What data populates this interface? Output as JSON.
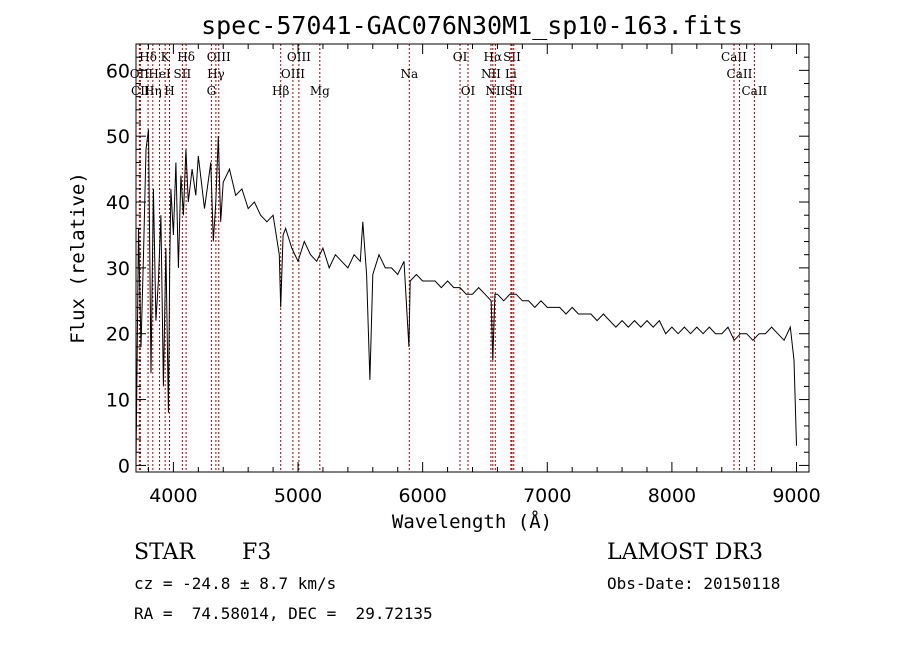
{
  "chart_data": {
    "type": "line",
    "title": "spec-57041-GAC076N30M1_sp10-163.fits",
    "xlabel": "Wavelength (Å)",
    "ylabel": "Flux (relative)",
    "xlim": [
      3700,
      9100
    ],
    "ylim": [
      -1,
      64
    ],
    "xticks": [
      4000,
      5000,
      6000,
      7000,
      8000,
      9000
    ],
    "yticks": [
      0,
      10,
      20,
      30,
      40,
      50,
      60
    ],
    "series": [
      {
        "name": "flux",
        "color": "#000000",
        "x": [
          3700,
          3720,
          3740,
          3760,
          3780,
          3800,
          3820,
          3840,
          3860,
          3880,
          3900,
          3920,
          3940,
          3960,
          3970,
          3980,
          4000,
          4020,
          4040,
          4060,
          4080,
          4100,
          4120,
          4150,
          4180,
          4200,
          4250,
          4300,
          4320,
          4340,
          4360,
          4380,
          4400,
          4450,
          4500,
          4550,
          4600,
          4650,
          4700,
          4750,
          4800,
          4850,
          4861,
          4880,
          4900,
          4950,
          5000,
          5050,
          5100,
          5150,
          5200,
          5250,
          5300,
          5350,
          5400,
          5450,
          5500,
          5520,
          5550,
          5577,
          5600,
          5650,
          5700,
          5750,
          5800,
          5850,
          5890,
          5900,
          5950,
          6000,
          6050,
          6100,
          6150,
          6200,
          6250,
          6300,
          6350,
          6400,
          6450,
          6500,
          6550,
          6563,
          6580,
          6600,
          6650,
          6700,
          6750,
          6800,
          6850,
          6900,
          6950,
          7000,
          7050,
          7100,
          7150,
          7200,
          7250,
          7300,
          7350,
          7400,
          7450,
          7500,
          7550,
          7600,
          7650,
          7700,
          7750,
          7800,
          7850,
          7900,
          7950,
          8000,
          8050,
          8100,
          8150,
          8200,
          8250,
          8300,
          8350,
          8400,
          8450,
          8500,
          8550,
          8600,
          8650,
          8700,
          8750,
          8800,
          8850,
          8900,
          8950,
          8980,
          9000
        ],
        "y": [
          0,
          36,
          18,
          32,
          48,
          51,
          14,
          42,
          22,
          28,
          38,
          12,
          33,
          8,
          30,
          42,
          35,
          46,
          30,
          44,
          38,
          48,
          40,
          45,
          41,
          47,
          39,
          46,
          34,
          40,
          50,
          37,
          43,
          45,
          41,
          42,
          39,
          40,
          38,
          37,
          38,
          32,
          24,
          35,
          36,
          33,
          31,
          34,
          32,
          31,
          33,
          30,
          32,
          31,
          30,
          32,
          31,
          37,
          29,
          13,
          29,
          32,
          30,
          30,
          29,
          31,
          18,
          28,
          29,
          28,
          28,
          28,
          27,
          28,
          27,
          27,
          26,
          26,
          27,
          26,
          25,
          16,
          26,
          26,
          25,
          26,
          26,
          25,
          25,
          24,
          25,
          24,
          24,
          24,
          23,
          24,
          23,
          23,
          23,
          22,
          23,
          22,
          21,
          22,
          21,
          22,
          21,
          22,
          21,
          22,
          20,
          21,
          20,
          21,
          20,
          21,
          20,
          21,
          20,
          20,
          21,
          19,
          20,
          20,
          19,
          20,
          20,
          21,
          20,
          19,
          21,
          16,
          3
        ]
      }
    ],
    "spectral_lines": [
      {
        "name": "Hδ",
        "x": 3797,
        "row": 1
      },
      {
        "name": "OII",
        "x": 3727,
        "row": 2
      },
      {
        "name": "CII",
        "x": 3735,
        "row": 3
      },
      {
        "name": "K",
        "x": 3934,
        "row": 1
      },
      {
        "name": "HeI",
        "x": 3889,
        "row": 2
      },
      {
        "name": "Hη",
        "x": 3835,
        "row": 3
      },
      {
        "name": "H",
        "x": 3969,
        "row": 3
      },
      {
        "name": "SII",
        "x": 4072,
        "row": 2
      },
      {
        "name": "Hδ",
        "x": 4102,
        "row": 1
      },
      {
        "name": "OIII",
        "x": 4364,
        "row": 1
      },
      {
        "name": "Hγ",
        "x": 4341,
        "row": 2
      },
      {
        "name": "G",
        "x": 4305,
        "row": 3
      },
      {
        "name": "Hβ",
        "x": 4861,
        "row": 3
      },
      {
        "name": "OIII",
        "x": 5007,
        "row": 1
      },
      {
        "name": "OIII",
        "x": 4959,
        "row": 2
      },
      {
        "name": "Mg",
        "x": 5175,
        "row": 3
      },
      {
        "name": "Na",
        "x": 5893,
        "row": 2
      },
      {
        "name": "OI",
        "x": 6300,
        "row": 1
      },
      {
        "name": "OI",
        "x": 6364,
        "row": 3
      },
      {
        "name": "Hα",
        "x": 6563,
        "row": 1
      },
      {
        "name": "NII",
        "x": 6548,
        "row": 2
      },
      {
        "name": "NII",
        "x": 6583,
        "row": 3
      },
      {
        "name": "SII",
        "x": 6717,
        "row": 1
      },
      {
        "name": "Li",
        "x": 6708,
        "row": 2
      },
      {
        "name": "SII",
        "x": 6731,
        "row": 3
      },
      {
        "name": "CaII",
        "x": 8498,
        "row": 1
      },
      {
        "name": "CaII",
        "x": 8542,
        "row": 2
      },
      {
        "name": "CaII",
        "x": 8662,
        "row": 3
      }
    ],
    "line_color": "#aa0000"
  },
  "info": {
    "class": "STAR",
    "subclass": "F3",
    "survey": "LAMOST DR3",
    "cz": "cz = -24.8 ± 8.7 km/s",
    "obs_date": "Obs-Date: 20150118",
    "coords": "RA =  74.58014, DEC =  29.72135"
  }
}
